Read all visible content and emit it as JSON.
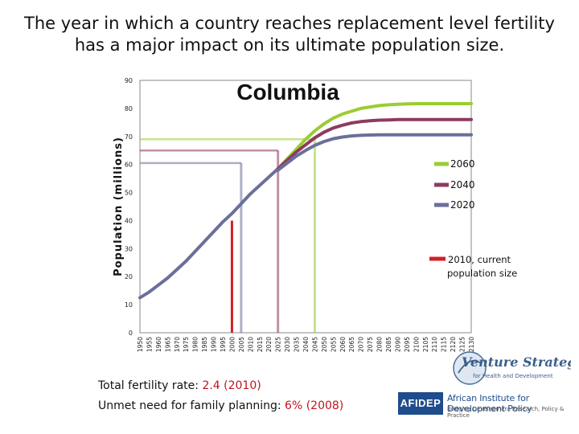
{
  "slide": {
    "title_line1": "The year in which a country reaches replacement level fertility",
    "title_line2": "has a major impact on its ultimate population size."
  },
  "chart_data": {
    "type": "line",
    "title": "Columbia",
    "ylabel": "Population (millions)",
    "ylim": [
      0,
      90
    ],
    "yticks": [
      0,
      10,
      20,
      30,
      40,
      50,
      60,
      70,
      80,
      90
    ],
    "xlim": [
      1950,
      2130
    ],
    "x": [
      1950,
      1955,
      1960,
      1965,
      1970,
      1975,
      1980,
      1985,
      1990,
      1995,
      2000,
      2005,
      2010,
      2015,
      2020,
      2025,
      2030,
      2035,
      2040,
      2045,
      2050,
      2055,
      2060,
      2065,
      2070,
      2075,
      2080,
      2085,
      2090,
      2095,
      2100,
      2105,
      2110,
      2115,
      2120,
      2125,
      2130
    ],
    "xtick_labels": [
      "1950",
      "1955",
      "1960",
      "1965",
      "1970",
      "1975",
      "1980",
      "1985",
      "1990",
      "1995",
      "2000",
      "2005",
      "2010",
      "2015",
      "2020",
      "2025",
      "2030",
      "2035",
      "2040",
      "2045",
      "2050",
      "2055",
      "2060",
      "2065",
      "2070",
      "2075",
      "2080",
      "2085",
      "2090",
      "2095",
      "2100",
      "2105",
      "2110",
      "2115",
      "2120",
      "2125",
      "2130"
    ],
    "history": {
      "x": [
        1950,
        1955,
        1960,
        1965,
        1970,
        1975,
        1980,
        1985,
        1990,
        1995,
        2000,
        2005,
        2010,
        2015,
        2020,
        2025
      ],
      "values": [
        12.5,
        14.5,
        17,
        19.5,
        22.5,
        25.5,
        29,
        32.5,
        36,
        39.5,
        42.5,
        46,
        49.5,
        52.5,
        55.5,
        58.5
      ]
    },
    "series": [
      {
        "name": "2060",
        "color": "#9acd32",
        "marker_year": 2045,
        "marker_value": 69,
        "x": [
          2025,
          2030,
          2035,
          2040,
          2045,
          2050,
          2055,
          2060,
          2065,
          2070,
          2075,
          2080,
          2085,
          2090,
          2095,
          2100,
          2105,
          2110,
          2115,
          2120,
          2125,
          2130
        ],
        "values": [
          58.5,
          62,
          65.5,
          69,
          72,
          74.5,
          76.5,
          78,
          79,
          80,
          80.5,
          81,
          81.3,
          81.5,
          81.6,
          81.7,
          81.7,
          81.7,
          81.7,
          81.7,
          81.7,
          81.7
        ]
      },
      {
        "name": "2040",
        "color": "#8e3a62",
        "marker_year": 2025,
        "marker_value": 65,
        "x": [
          2025,
          2030,
          2035,
          2040,
          2045,
          2050,
          2055,
          2060,
          2065,
          2070,
          2075,
          2080,
          2085,
          2090,
          2095,
          2100,
          2105,
          2110,
          2115,
          2120,
          2125,
          2130
        ],
        "values": [
          58.5,
          61.5,
          64.5,
          67,
          69.5,
          71.5,
          73,
          74,
          74.8,
          75.3,
          75.6,
          75.8,
          75.9,
          76,
          76,
          76,
          76,
          76,
          76,
          76,
          76,
          76
        ]
      },
      {
        "name": "2020",
        "color": "#6a6f9a",
        "marker_year": 2005,
        "marker_value": 60.5,
        "x": [
          2025,
          2030,
          2035,
          2040,
          2045,
          2050,
          2055,
          2060,
          2065,
          2070,
          2075,
          2080,
          2085,
          2090,
          2095,
          2100,
          2105,
          2110,
          2115,
          2120,
          2125,
          2130
        ],
        "values": [
          58,
          60.5,
          63,
          65,
          66.8,
          68.2,
          69.2,
          69.8,
          70.2,
          70.4,
          70.5,
          70.6,
          70.6,
          70.6,
          70.6,
          70.6,
          70.6,
          70.6,
          70.6,
          70.6,
          70.6,
          70.6
        ]
      },
      {
        "name": "2010, current population size",
        "label_line1": "2010, current",
        "label_line2": "population size",
        "color": "#d32027",
        "marker_year": 2000,
        "marker_value": 40
      }
    ],
    "legend_position": "right"
  },
  "footer": {
    "tfr_label": "Total fertility rate:",
    "tfr_value": "2.4",
    "tfr_year": "(2010)",
    "unmet_label": "Unmet need for family planning:",
    "unmet_value": "6%",
    "unmet_year": "(2008)"
  },
  "logos": {
    "vs_line1": "Venture Strategies",
    "vs_line2": "for Health and Development",
    "afidep_short": "AFIDEP",
    "afidep_name": "African Institute for Development Policy",
    "afidep_tagline": "Bridging Development Research, Policy & Practice"
  }
}
